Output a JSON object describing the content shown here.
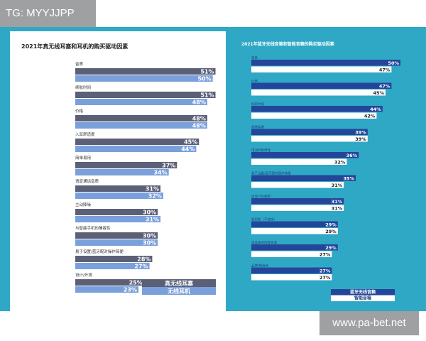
{
  "tag_label": "TG: MYYJJPP",
  "watermark": "www.pa-bet.net",
  "colors": {
    "teal_bg": "#2fa8c5",
    "left_series1": "#5b6077",
    "left_series2": "#7aa0dc",
    "right_series1": "#24469a",
    "right_series2": "#ffffff"
  },
  "chart_data": [
    {
      "type": "bar",
      "orientation": "horizontal",
      "title": "2021年真无线耳塞和耳机的购买驱动因素",
      "categories": [
        "音质",
        "续航时间",
        "价格",
        "入耳舒适度",
        "简单易用",
        "语音通话音质",
        "主动降噪",
        "与智能手机的兼容性",
        "易于设置/蓝牙配对操作简便",
        "设计/外观"
      ],
      "series": [
        {
          "name": "真无线耳塞",
          "values": [
            51,
            51,
            48,
            45,
            37,
            31,
            30,
            30,
            28,
            25
          ]
        },
        {
          "name": "无线耳机",
          "values": [
            50,
            48,
            48,
            44,
            34,
            32,
            31,
            30,
            27,
            23
          ]
        }
      ],
      "value_suffix": "%",
      "xlim": [
        0,
        55
      ],
      "legend_position": "bottom-right",
      "grid": false
    },
    {
      "type": "bar",
      "orientation": "horizontal",
      "title": "2021年蓝牙无线音箱和智能音箱的购买驱动因素",
      "categories": [
        "音质",
        "价格",
        "续航时间",
        "便携易用",
        "电池的耐用性",
        "易于设置/蓝牙配对操作简便",
        "适合户外使用",
        "耐用性（不怕摔）",
        "高品质的内容资源",
        "品牌/制造商"
      ],
      "series": [
        {
          "name": "蓝牙无线音箱",
          "values": [
            50,
            47,
            44,
            39,
            36,
            35,
            31,
            29,
            29,
            27
          ]
        },
        {
          "name": "智能音箱",
          "values": [
            47,
            45,
            42,
            39,
            32,
            31,
            31,
            29,
            27,
            27
          ]
        }
      ],
      "value_suffix": "%",
      "xlim": [
        0,
        55
      ],
      "legend_position": "bottom-right",
      "grid": false
    }
  ]
}
